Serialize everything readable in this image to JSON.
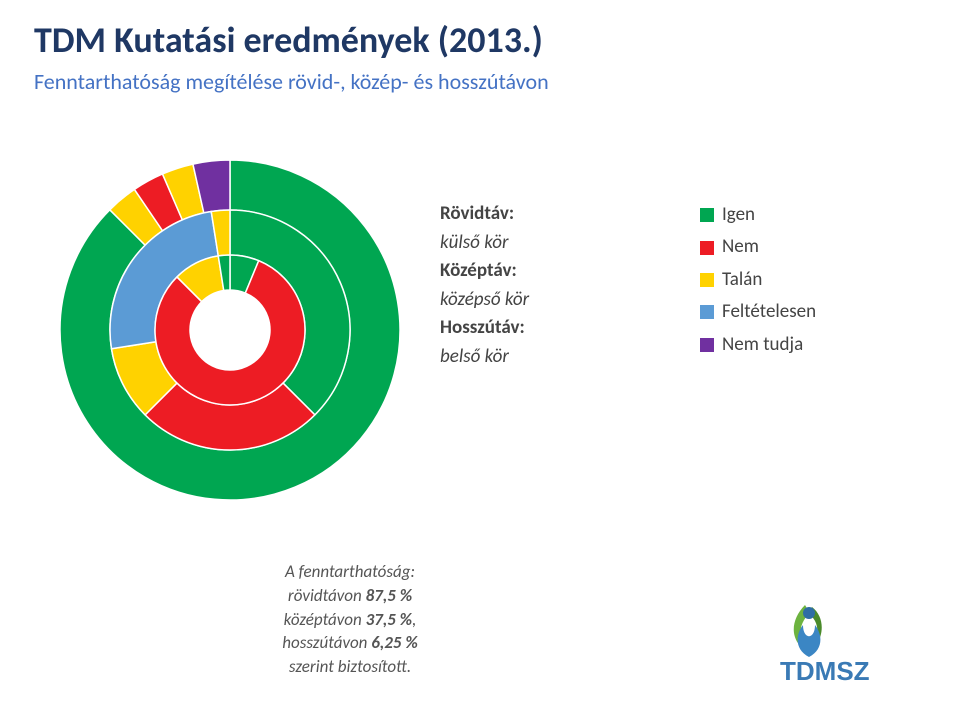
{
  "title": "TDM Kutatási eredmények (2013.)",
  "subtitle": "Fenntarthatóság megítélése rövid-, közép- és hosszútávon",
  "rings": {
    "label_outer_title": "Rövidtáv:",
    "label_outer_value": "külső kör",
    "label_middle_title": "Középtáv:",
    "label_middle_value": "középső kör",
    "label_inner_title": "Hosszútáv:",
    "label_inner_value": "belső kör"
  },
  "legend": [
    {
      "label": "Igen",
      "color": "#00a651"
    },
    {
      "label": "Nem",
      "color": "#ed1c24"
    },
    {
      "label": "Talán",
      "color": "#ffd200"
    },
    {
      "label": "Feltételesen",
      "color": "#5b9bd5"
    },
    {
      "label": "Nem tudja",
      "color": "#7030a0"
    }
  ],
  "chart": {
    "type": "nested-donut",
    "background": "#ffffff",
    "rings": [
      {
        "name": "Rövidtáv (külső)",
        "inner_r": 120,
        "outer_r": 170,
        "slices": [
          {
            "value": 87.5,
            "color": "#00a651"
          },
          {
            "value": 3.0,
            "color": "#ffd200"
          },
          {
            "value": 3.0,
            "color": "#ed1c24"
          },
          {
            "value": 3.0,
            "color": "#ffd200"
          },
          {
            "value": 3.5,
            "color": "#7030a0"
          }
        ]
      },
      {
        "name": "Középtáv (középső)",
        "inner_r": 75,
        "outer_r": 120,
        "slices": [
          {
            "value": 37.5,
            "color": "#00a651"
          },
          {
            "value": 25.0,
            "color": "#ed1c24"
          },
          {
            "value": 10.0,
            "color": "#ffd200"
          },
          {
            "value": 25.0,
            "color": "#5b9bd5"
          },
          {
            "value": 2.5,
            "color": "#ffd200"
          }
        ]
      },
      {
        "name": "Hosszútáv (belső)",
        "inner_r": 40,
        "outer_r": 75,
        "slices": [
          {
            "value": 6.25,
            "color": "#00a651"
          },
          {
            "value": 81.25,
            "color": "#ed1c24"
          },
          {
            "value": 10.0,
            "color": "#ffd200"
          },
          {
            "value": 2.5,
            "color": "#00a651"
          }
        ]
      }
    ]
  },
  "stats": {
    "head": "A fenntarthatóság:",
    "lines": [
      {
        "pre": "rövidtávon ",
        "pct": "87,5 %"
      },
      {
        "pre": "középtávon ",
        "pct": "37,5 %",
        "post": ","
      },
      {
        "pre": "hosszútávon ",
        "pct": "6,25 %"
      }
    ],
    "tail": "szerint biztosított."
  },
  "logo_text": "TDMSZ"
}
